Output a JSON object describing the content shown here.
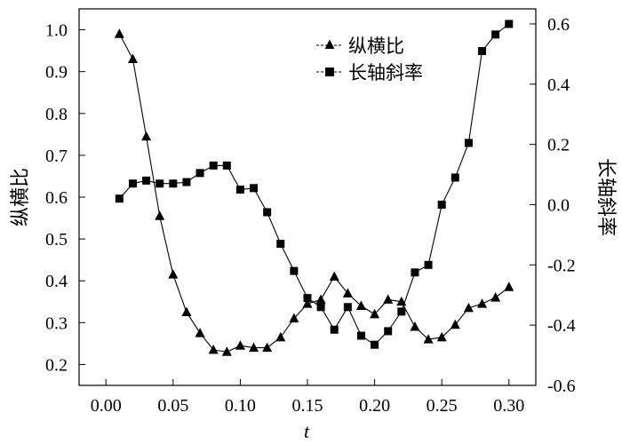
{
  "chart_data": {
    "type": "line",
    "xlabel": "t",
    "ylabel_left": "纵横比",
    "ylabel_right": "长轴斜率",
    "xlim": [
      -0.02,
      0.32
    ],
    "ylim_left": [
      0.15,
      1.05
    ],
    "ylim_right": [
      -0.6,
      0.65
    ],
    "xticks": [
      "0.00",
      "0.05",
      "0.10",
      "0.15",
      "0.20",
      "0.25",
      "0.30"
    ],
    "xtick_values": [
      0.0,
      0.05,
      0.1,
      0.15,
      0.2,
      0.25,
      0.3
    ],
    "yticks_left": [
      "0.2",
      "0.3",
      "0.4",
      "0.5",
      "0.6",
      "0.7",
      "0.8",
      "0.9",
      "1.0"
    ],
    "ytick_left_values": [
      0.2,
      0.3,
      0.4,
      0.5,
      0.6,
      0.7,
      0.8,
      0.9,
      1.0
    ],
    "yticks_right": [
      "-0.6",
      "-0.4",
      "-0.2",
      "0.0",
      "0.2",
      "0.4",
      "0.6"
    ],
    "ytick_right_values": [
      -0.6,
      -0.4,
      -0.2,
      0.0,
      0.2,
      0.4,
      0.6
    ],
    "grid": false,
    "legend_position": "top-right",
    "series": [
      {
        "name": "纵横比",
        "axis": "left",
        "marker": "triangle",
        "x": [
          0.01,
          0.02,
          0.03,
          0.04,
          0.05,
          0.06,
          0.07,
          0.08,
          0.09,
          0.1,
          0.11,
          0.12,
          0.13,
          0.14,
          0.15,
          0.16,
          0.17,
          0.18,
          0.19,
          0.2,
          0.21,
          0.22,
          0.23,
          0.24,
          0.25,
          0.26,
          0.27,
          0.28,
          0.29,
          0.3
        ],
        "values": [
          0.99,
          0.93,
          0.745,
          0.555,
          0.415,
          0.325,
          0.275,
          0.235,
          0.23,
          0.245,
          0.24,
          0.24,
          0.265,
          0.31,
          0.345,
          0.355,
          0.41,
          0.37,
          0.34,
          0.32,
          0.355,
          0.35,
          0.29,
          0.26,
          0.265,
          0.295,
          0.335,
          0.345,
          0.36,
          0.385
        ]
      },
      {
        "name": "长轴斜率",
        "axis": "right",
        "marker": "square",
        "x": [
          0.01,
          0.02,
          0.03,
          0.04,
          0.05,
          0.06,
          0.07,
          0.08,
          0.09,
          0.1,
          0.11,
          0.12,
          0.13,
          0.14,
          0.15,
          0.16,
          0.17,
          0.18,
          0.19,
          0.2,
          0.21,
          0.22,
          0.23,
          0.24,
          0.25,
          0.26,
          0.27,
          0.28,
          0.29,
          0.3
        ],
        "values": [
          0.02,
          0.07,
          0.08,
          0.07,
          0.07,
          0.075,
          0.105,
          0.13,
          0.13,
          0.05,
          0.055,
          -0.025,
          -0.13,
          -0.22,
          -0.31,
          -0.34,
          -0.415,
          -0.34,
          -0.435,
          -0.465,
          -0.42,
          -0.355,
          -0.225,
          -0.2,
          0.0,
          0.09,
          0.205,
          0.51,
          0.565,
          0.6
        ]
      }
    ]
  }
}
